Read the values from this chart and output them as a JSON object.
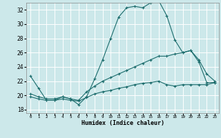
{
  "title": "",
  "xlabel": "Humidex (Indice chaleur)",
  "bg_color": "#cce8ea",
  "grid_color": "#ffffff",
  "line_color": "#1a6b6b",
  "xlim": [
    -0.5,
    23.5
  ],
  "ylim": [
    17.5,
    33.0
  ],
  "yticks": [
    18,
    20,
    22,
    24,
    26,
    28,
    30,
    32
  ],
  "xticks": [
    0,
    1,
    2,
    3,
    4,
    5,
    6,
    7,
    8,
    9,
    10,
    11,
    12,
    13,
    14,
    15,
    16,
    17,
    18,
    19,
    20,
    21,
    22,
    23
  ],
  "series": [
    {
      "x": [
        0,
        1,
        2,
        3,
        4,
        5,
        6,
        7,
        8,
        9,
        10,
        11,
        12,
        13,
        14,
        15,
        16,
        17,
        18,
        19,
        20,
        21,
        22,
        23
      ],
      "y": [
        22.7,
        21.0,
        19.3,
        19.3,
        19.8,
        19.5,
        18.7,
        19.8,
        22.3,
        25.0,
        28.0,
        31.0,
        32.3,
        32.5,
        32.3,
        33.0,
        33.3,
        31.2,
        27.8,
        26.0,
        26.3,
        24.7,
        21.8,
        21.8
      ]
    },
    {
      "x": [
        0,
        1,
        2,
        3,
        4,
        5,
        6,
        7,
        8,
        9,
        10,
        11,
        12,
        13,
        14,
        15,
        16,
        17,
        18,
        19,
        20,
        21,
        22,
        23
      ],
      "y": [
        20.2,
        19.8,
        19.5,
        19.5,
        19.8,
        19.5,
        19.3,
        20.5,
        21.3,
        22.0,
        22.5,
        23.0,
        23.5,
        24.0,
        24.5,
        25.0,
        25.5,
        25.5,
        25.8,
        26.0,
        26.3,
        25.0,
        23.0,
        22.0
      ]
    },
    {
      "x": [
        0,
        1,
        2,
        3,
        4,
        5,
        6,
        7,
        8,
        9,
        10,
        11,
        12,
        13,
        14,
        15,
        16,
        17,
        18,
        19,
        20,
        21,
        22,
        23
      ],
      "y": [
        19.8,
        19.5,
        19.3,
        19.3,
        19.5,
        19.3,
        19.2,
        19.7,
        20.2,
        20.5,
        20.7,
        21.0,
        21.2,
        21.5,
        21.7,
        21.8,
        22.0,
        21.5,
        21.3,
        21.5,
        21.5,
        21.5,
        21.5,
        21.8
      ]
    }
  ]
}
